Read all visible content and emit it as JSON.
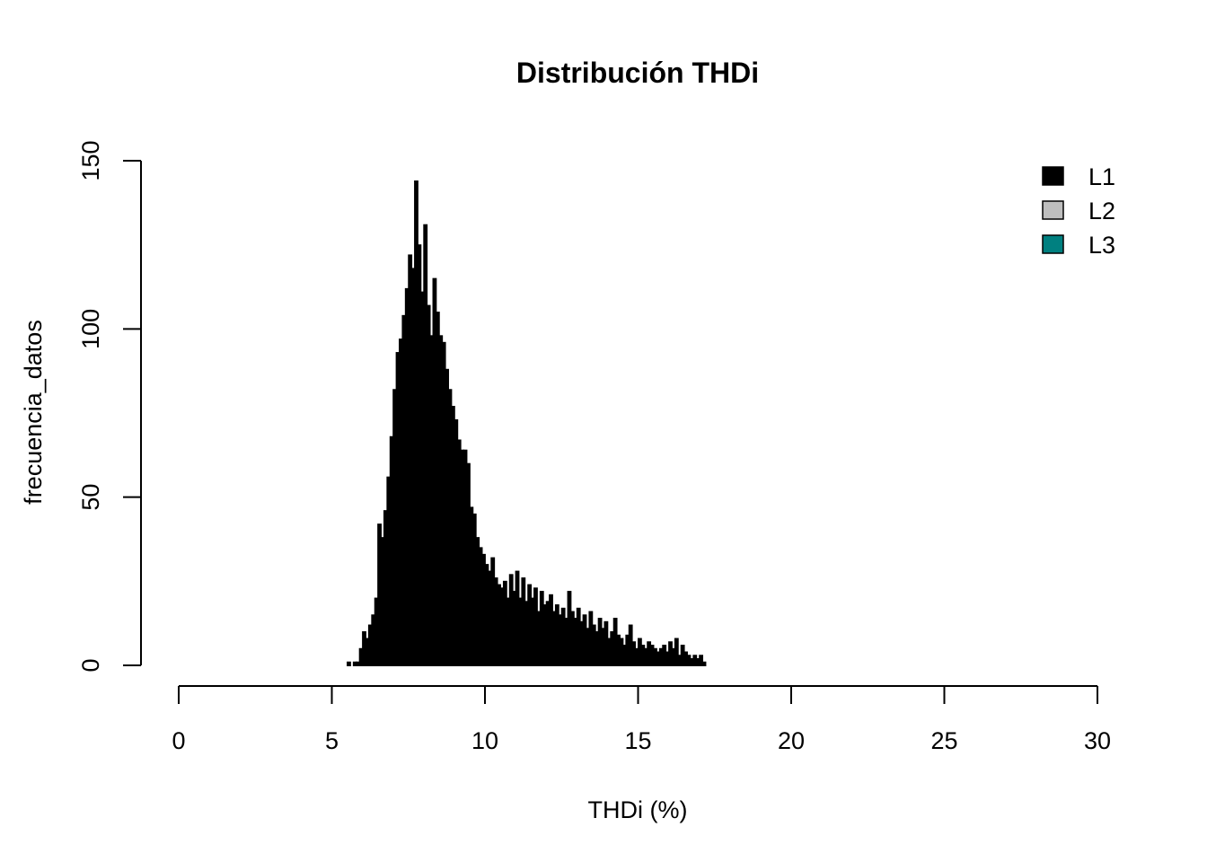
{
  "chart_data": {
    "type": "bar",
    "title": "Distribución THDi",
    "xlabel": "THDi (%)",
    "ylabel": "frecuencia_datos",
    "xlim": [
      0,
      30
    ],
    "ylim": [
      0,
      150
    ],
    "xticks": [
      "0",
      "5",
      "10",
      "15",
      "20",
      "25",
      "30"
    ],
    "yticks": [
      "0",
      "50",
      "100",
      "150"
    ],
    "bin_width": 0.1,
    "grid": false,
    "legend_position": "top-right",
    "legend": [
      {
        "label": "L1",
        "color": "#000000"
      },
      {
        "label": "L2",
        "color": "#bebebe"
      },
      {
        "label": "L3",
        "color": "#008080"
      }
    ],
    "series": [
      {
        "name": "L1",
        "color": "#000000",
        "bins_start": 5.5,
        "values": [
          1,
          0,
          1,
          1,
          5,
          10,
          8,
          12,
          15,
          20,
          42,
          38,
          46,
          56,
          68,
          82,
          93,
          97,
          104,
          112,
          122,
          118,
          144,
          125,
          111,
          131,
          107,
          98,
          115,
          105,
          98,
          96,
          88,
          82,
          77,
          73,
          67,
          64,
          64,
          60,
          47,
          45,
          38,
          35,
          33,
          30,
          28,
          32,
          26,
          24,
          23,
          25,
          20,
          27,
          22,
          28,
          20,
          26,
          19,
          24,
          20,
          23,
          16,
          22,
          18,
          19,
          21,
          16,
          18,
          15,
          17,
          14,
          22,
          16,
          14,
          17,
          13,
          15,
          11,
          16,
          12,
          10,
          14,
          11,
          13,
          8,
          10,
          14,
          9,
          8,
          6,
          9,
          12,
          7,
          5,
          8,
          6,
          5,
          7,
          6,
          5,
          4,
          5,
          6,
          4,
          7,
          5,
          8,
          3,
          6,
          4,
          3,
          2,
          3,
          2,
          3,
          1
        ],
        "values_note_unused": ""
      }
    ]
  }
}
